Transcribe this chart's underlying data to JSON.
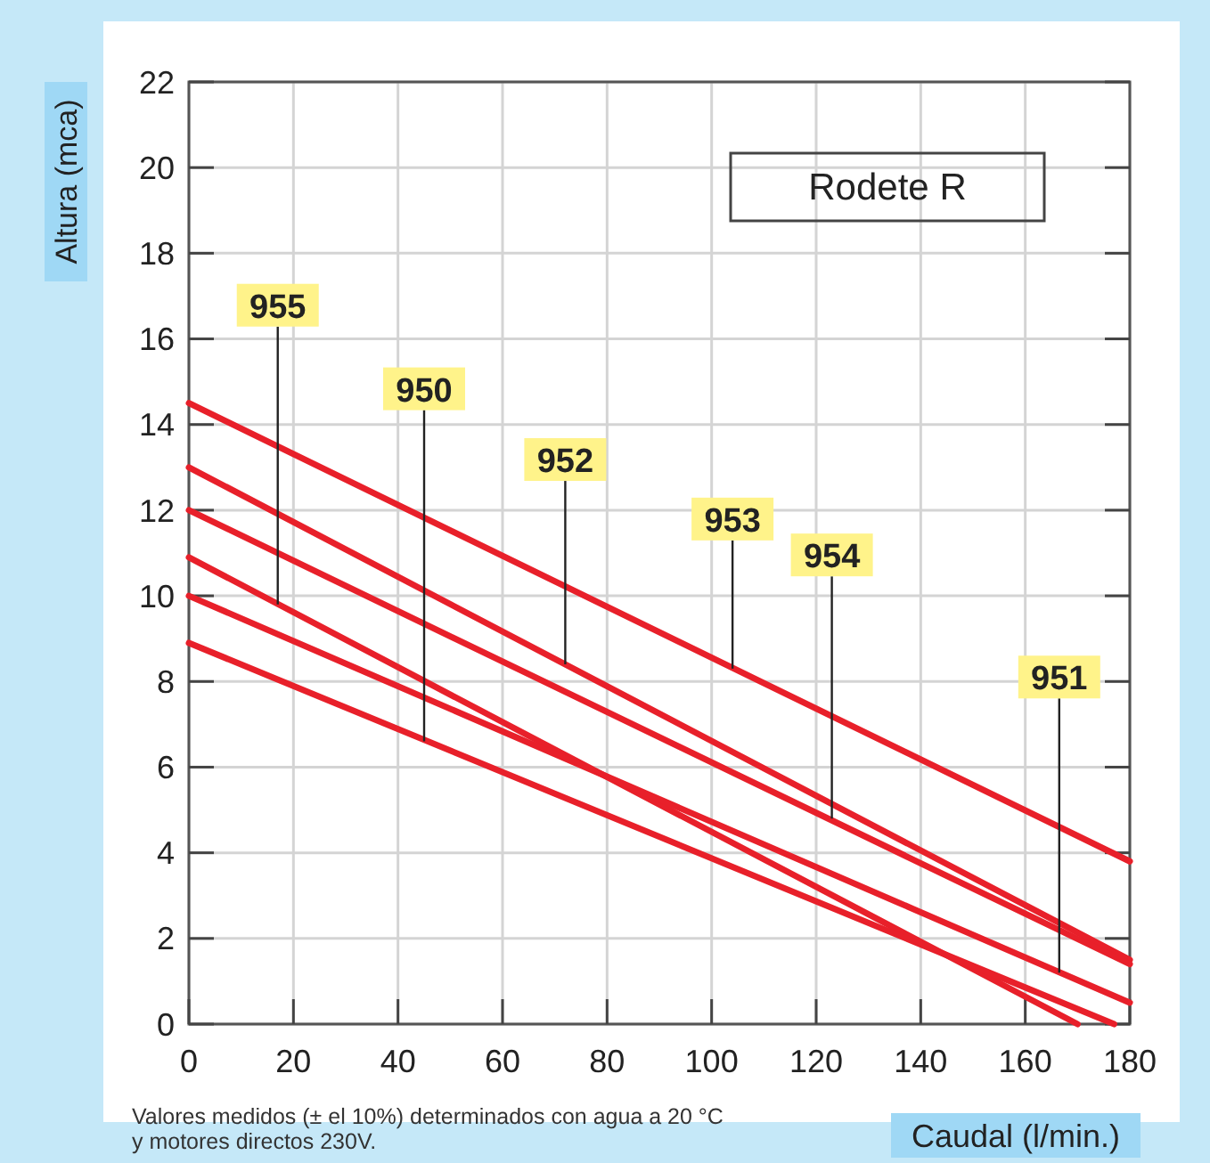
{
  "chart_data": {
    "type": "line",
    "title": "Rodete R",
    "xlabel": "Caudal (l/min.)",
    "ylabel": "Altura (mca)",
    "xlim": [
      0,
      180
    ],
    "xticks": [
      0,
      20,
      40,
      60,
      80,
      100,
      120,
      140,
      160,
      180
    ],
    "ylim": [
      0,
      22
    ],
    "yticks": [
      0,
      2,
      4,
      6,
      8,
      10,
      12,
      14,
      16,
      18,
      20,
      22
    ],
    "grid": true,
    "line_style": "solid",
    "marker": "none",
    "series": [
      {
        "color": "#e8202a",
        "x": [
          0,
          180
        ],
        "values": [
          14.5,
          3.8
        ]
      },
      {
        "color": "#e8202a",
        "x": [
          0,
          180
        ],
        "values": [
          13,
          1.5
        ]
      },
      {
        "color": "#e8202a",
        "x": [
          0,
          180
        ],
        "values": [
          12,
          1.4
        ]
      },
      {
        "color": "#e8202a",
        "x": [
          0,
          170
        ],
        "values": [
          10.9,
          0
        ]
      },
      {
        "color": "#e8202a",
        "x": [
          0,
          180
        ],
        "values": [
          10,
          0.5
        ]
      },
      {
        "color": "#e8202a",
        "x": [
          0,
          177
        ],
        "values": [
          8.9,
          0
        ]
      }
    ],
    "annotations": [
      {
        "text": "955",
        "x": 17,
        "y": 9.8
      },
      {
        "text": "950",
        "x": 45,
        "y": 6.6
      },
      {
        "text": "952",
        "x": 72,
        "y": 8.4
      },
      {
        "text": "953",
        "x": 104,
        "y": 8.3
      },
      {
        "text": "954",
        "x": 123,
        "y": 4.8
      },
      {
        "text": "951",
        "x": 166.5,
        "y": 1.2
      },
      "Valores medidos (± el 10%) determinados con agua a 20 °C\ny motores directos 230V."
    ]
  }
}
